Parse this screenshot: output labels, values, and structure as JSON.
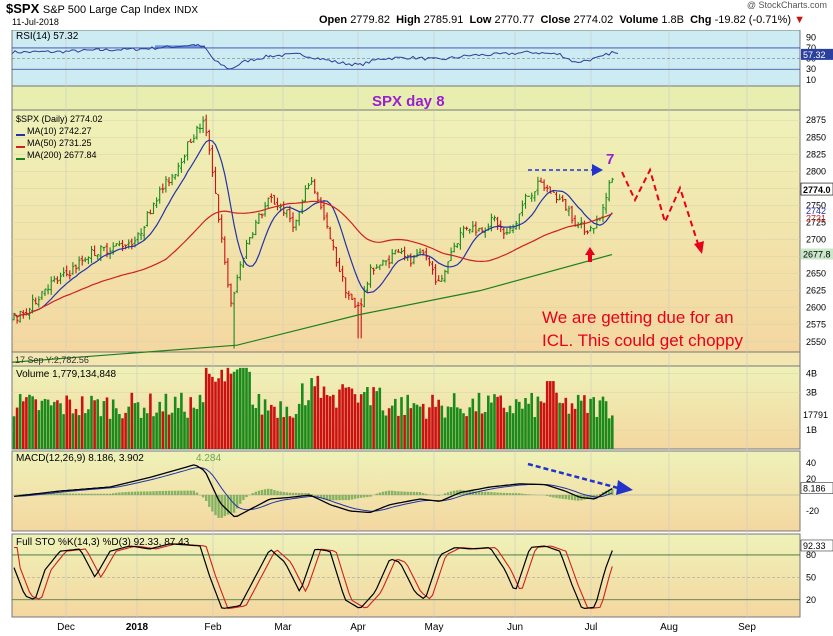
{
  "header": {
    "symbol": "$SPX",
    "name": "S&P 500 Large Cap Index",
    "exchange": "INDX",
    "date": "11-Jul-2018",
    "watermark": "@ StockCharts.com",
    "quote": {
      "open_label": "Open",
      "open": "2779.82",
      "high_label": "High",
      "high": "2785.91",
      "low_label": "Low",
      "low": "2770.77",
      "close_label": "Close",
      "close": "2774.02",
      "volume_label": "Volume",
      "volume": "1.8B",
      "chg_label": "Chg",
      "chg": "-19.82 (-0.71%)",
      "chg_arrow": "▼"
    }
  },
  "colors": {
    "panel_bg": "#f7edb0",
    "rsi_bg": "#cdebf2",
    "price_line": "#2233aa",
    "ma10": "#2233aa",
    "ma50": "#d02020",
    "ma200": "#208020",
    "up_bar": "#1a8a1a",
    "down_bar": "#cc1111",
    "annotation_red": "#e8001a",
    "annotation_purple": "#9a1fd0",
    "annotation_blue": "#2233cc"
  },
  "x_axis": {
    "labels": [
      "Dec",
      "2018",
      "Feb",
      "Mar",
      "Apr",
      "May",
      "Jun",
      "Jul",
      "Aug",
      "Sep"
    ],
    "bold": [
      false,
      true,
      false,
      false,
      false,
      false,
      false,
      false,
      false,
      false
    ]
  },
  "rsi_panel": {
    "legend": "RSI(14) 57.32",
    "ticks": [
      "90",
      "70",
      "50",
      "30",
      "10"
    ],
    "current_label": "57.32",
    "annotation": "SPX day 8"
  },
  "price_panel": {
    "legend": [
      {
        "text": "$SPX (Daily) 2774.02",
        "color": "#000000"
      },
      {
        "text": "MA(10) 2742.27",
        "color": "#2233aa"
      },
      {
        "text": "MA(50) 2731.25",
        "color": "#d02020"
      },
      {
        "text": "MA(200) 2677.84",
        "color": "#208020"
      }
    ],
    "y_ticks": [
      "2875",
      "2850",
      "2825",
      "2800",
      "2775",
      "2750",
      "2725",
      "2700",
      "2675",
      "2650",
      "2625",
      "2600",
      "2575",
      "2550"
    ],
    "price_badge": "2774.0",
    "ma_badges": [
      "2742",
      "2731",
      "2677.8"
    ],
    "day_count": "7",
    "note_line1": "We are getting due for an",
    "note_line2": "ICL. This could get choppy",
    "footer_tag": "17 Sep Y:2,782.56"
  },
  "volume_panel": {
    "legend": "Volume 1,779,134,848",
    "ticks": [
      "4B",
      "3B",
      "1B"
    ],
    "badge": "17791"
  },
  "macd_panel": {
    "legend_prefix": "MACD(12,26,9) 8.186, 3.902",
    "legend_hist": "4.284",
    "ticks": [
      "40",
      "20",
      "-20"
    ],
    "badge": "8.186"
  },
  "sto_panel": {
    "legend": "Full STO %K(14,3) %D(3) 92.33, 87.43",
    "ticks": [
      "80",
      "50",
      "20"
    ],
    "badge": "92.33"
  },
  "chart_data": {
    "type": "candlestick",
    "title": "$SPX S&P 500 Large Cap Index INDX",
    "date_range": [
      "Nov-2017",
      "Jul-2018"
    ],
    "price_ylim": [
      2535,
      2890
    ],
    "price_path": [
      {
        "month": "late-Nov",
        "close": 2585
      },
      {
        "month": "Dec",
        "close": 2645
      },
      {
        "month": "Dec",
        "close": 2690
      },
      {
        "month": "2018",
        "close": 2700
      },
      {
        "month": "Jan",
        "close": 2780
      },
      {
        "month": "Jan",
        "close": 2872
      },
      {
        "month": "Feb",
        "close": 2648
      },
      {
        "month": "Feb",
        "close": 2590
      },
      {
        "month": "Feb",
        "close": 2750
      },
      {
        "month": "Mar",
        "close": 2785
      },
      {
        "month": "Mar",
        "close": 2720
      },
      {
        "month": "Apr",
        "close": 2590
      },
      {
        "month": "Apr",
        "close": 2670
      },
      {
        "month": "May",
        "close": 2640
      },
      {
        "month": "May",
        "close": 2720
      },
      {
        "month": "Jun",
        "close": 2780
      },
      {
        "month": "Jun",
        "close": 2755
      },
      {
        "month": "Jul",
        "close": 2715
      },
      {
        "month": "Jul",
        "close": 2774
      }
    ],
    "ma10_last": 2742.27,
    "ma50_last": 2731.25,
    "ma200_last": 2677.84,
    "rsi_last": 57.32,
    "macd": {
      "macd": 8.186,
      "signal": 3.902,
      "hist": 4.284
    },
    "full_sto": {
      "k": 92.33,
      "d": 87.43
    },
    "volume_last": 1779134848
  }
}
